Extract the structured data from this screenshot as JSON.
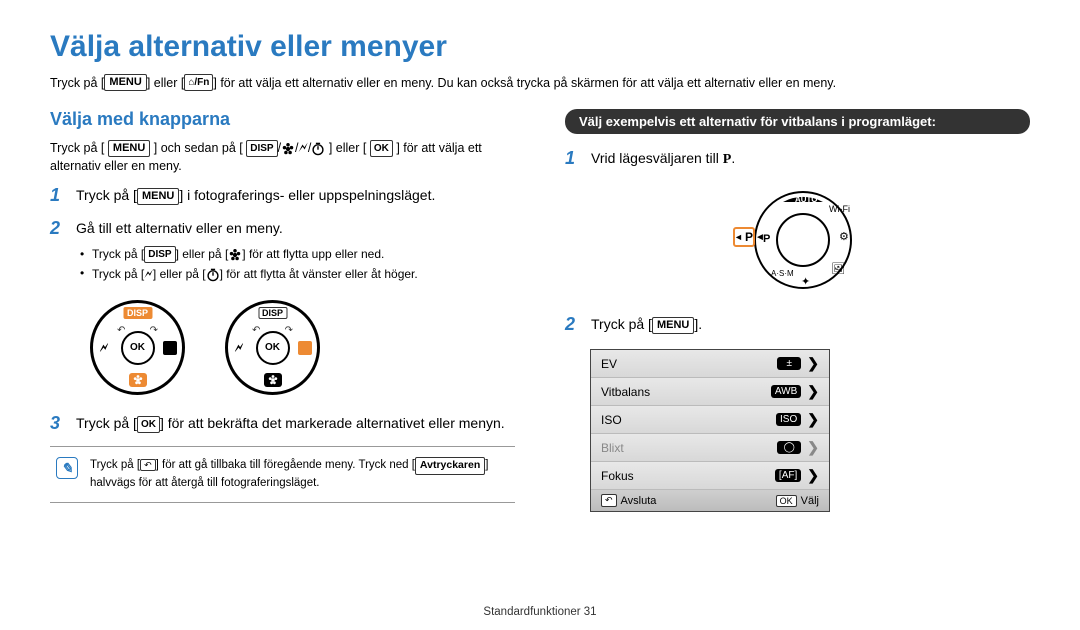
{
  "title": "Välja alternativ eller menyer",
  "intro_pre": "Tryck på [",
  "intro_mid1": "] eller [",
  "intro_fn": "⌂/Fn",
  "intro_post": "] för att välja ett alternativ eller en meny. Du kan också trycka på skärmen för att välja ett alternativ eller en meny.",
  "left": {
    "section_title": "Välja med knapparna",
    "sub_pre": "Tryck på [",
    "sub_mid1": "] och sedan på [",
    "sub_combo_disp": "DISP",
    "sub_mid2": "] eller [",
    "sub_ok": "OK",
    "sub_post": "] för att välja ett alternativ eller en meny.",
    "steps": {
      "s1_pre": "Tryck på [",
      "s1_post": "] i fotograferings- eller uppspelningsläget.",
      "s2": "Gå till ett alternativ eller en meny.",
      "b1_pre": "Tryck på [",
      "b1_disp": "DISP",
      "b1_mid": "] eller på [",
      "b1_post": "] för att flytta upp eller ned.",
      "b2_pre": "Tryck på [",
      "b2_mid": "] eller på [",
      "b2_post": "] för att flytta åt vänster eller åt höger.",
      "s3_pre": "Tryck på [",
      "s3_ok": "OK",
      "s3_post": "] för att bekräfta det markerade alternativet eller menyn."
    },
    "note_pre": "Tryck på [",
    "note_mid": "] för att gå tillbaka till föregående meny. Tryck ned [",
    "note_kbd": "Avtryckaren",
    "note_post": "] halvvägs för att återgå till fotograferingsläget.",
    "dial": {
      "disp": "DISP",
      "ok": "OK"
    }
  },
  "right": {
    "highlight": "Välj exempelvis ett alternativ för vitbalans i programläget:",
    "s1_pre": "Vrid lägesväljaren till ",
    "s1_mode": "P",
    "s1_post": ".",
    "s2_pre": "Tryck på [",
    "s2_post": "].",
    "menu": {
      "rows": [
        {
          "label": "EV",
          "badge": "±",
          "chev": "❯"
        },
        {
          "label": "Vitbalans",
          "badge": "AWB",
          "chev": "❯"
        },
        {
          "label": "ISO",
          "badge": "ISO",
          "chev": "❯"
        },
        {
          "label": "Blixt",
          "badge": "◯",
          "chev": "❯",
          "disabled": true
        },
        {
          "label": "Fokus",
          "badge": "[AF]",
          "chev": "❯"
        }
      ],
      "footer_left": "Avsluta",
      "footer_right_box": "OK",
      "footer_right": "Välj"
    }
  },
  "menu_label": "MENU",
  "footer": "Standardfunktioner  31",
  "colors": {
    "accent": "#2a7ac0",
    "orange": "#ed8a33"
  }
}
